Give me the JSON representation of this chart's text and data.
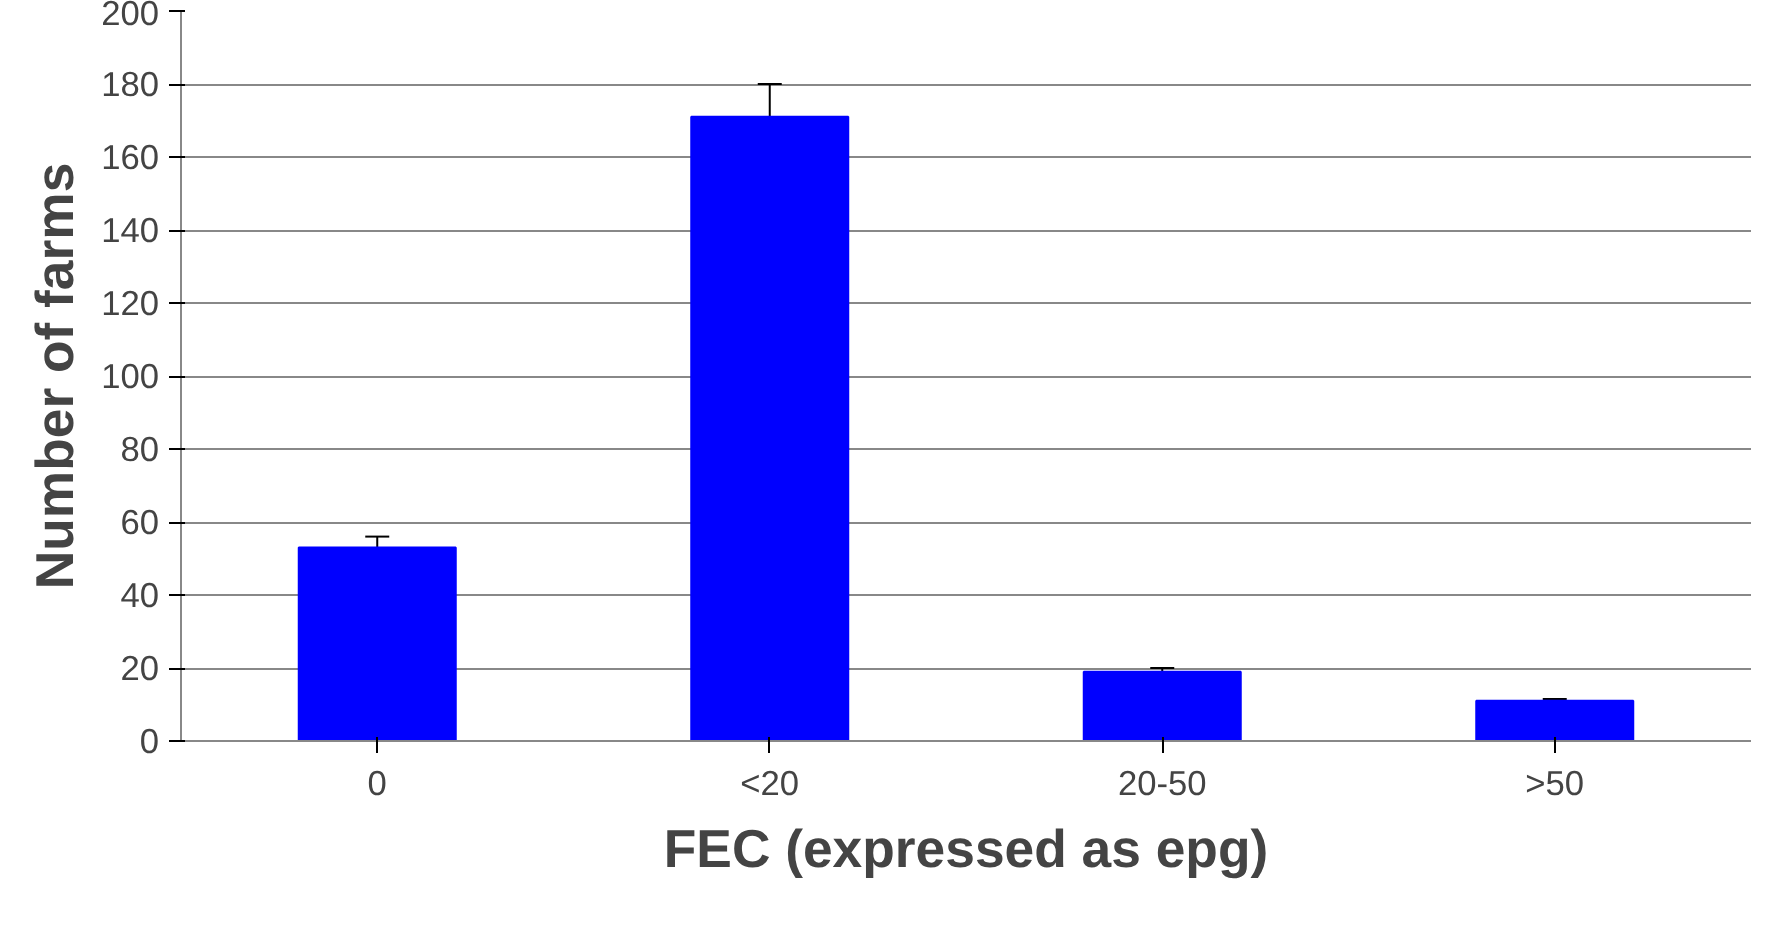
{
  "chart_data": {
    "type": "bar",
    "xlabel": "FEC (expressed as epg)",
    "ylabel": "Number of farms",
    "categories": [
      "0",
      "<20",
      "20-50",
      ">50"
    ],
    "values": [
      53,
      171,
      19,
      11
    ],
    "errors": [
      3,
      9,
      1,
      0.5
    ],
    "color": "#0000ff",
    "ylim": [
      0,
      200
    ],
    "yticks": [
      0,
      20,
      40,
      60,
      80,
      100,
      120,
      140,
      160,
      180,
      200
    ],
    "grid": "y"
  }
}
